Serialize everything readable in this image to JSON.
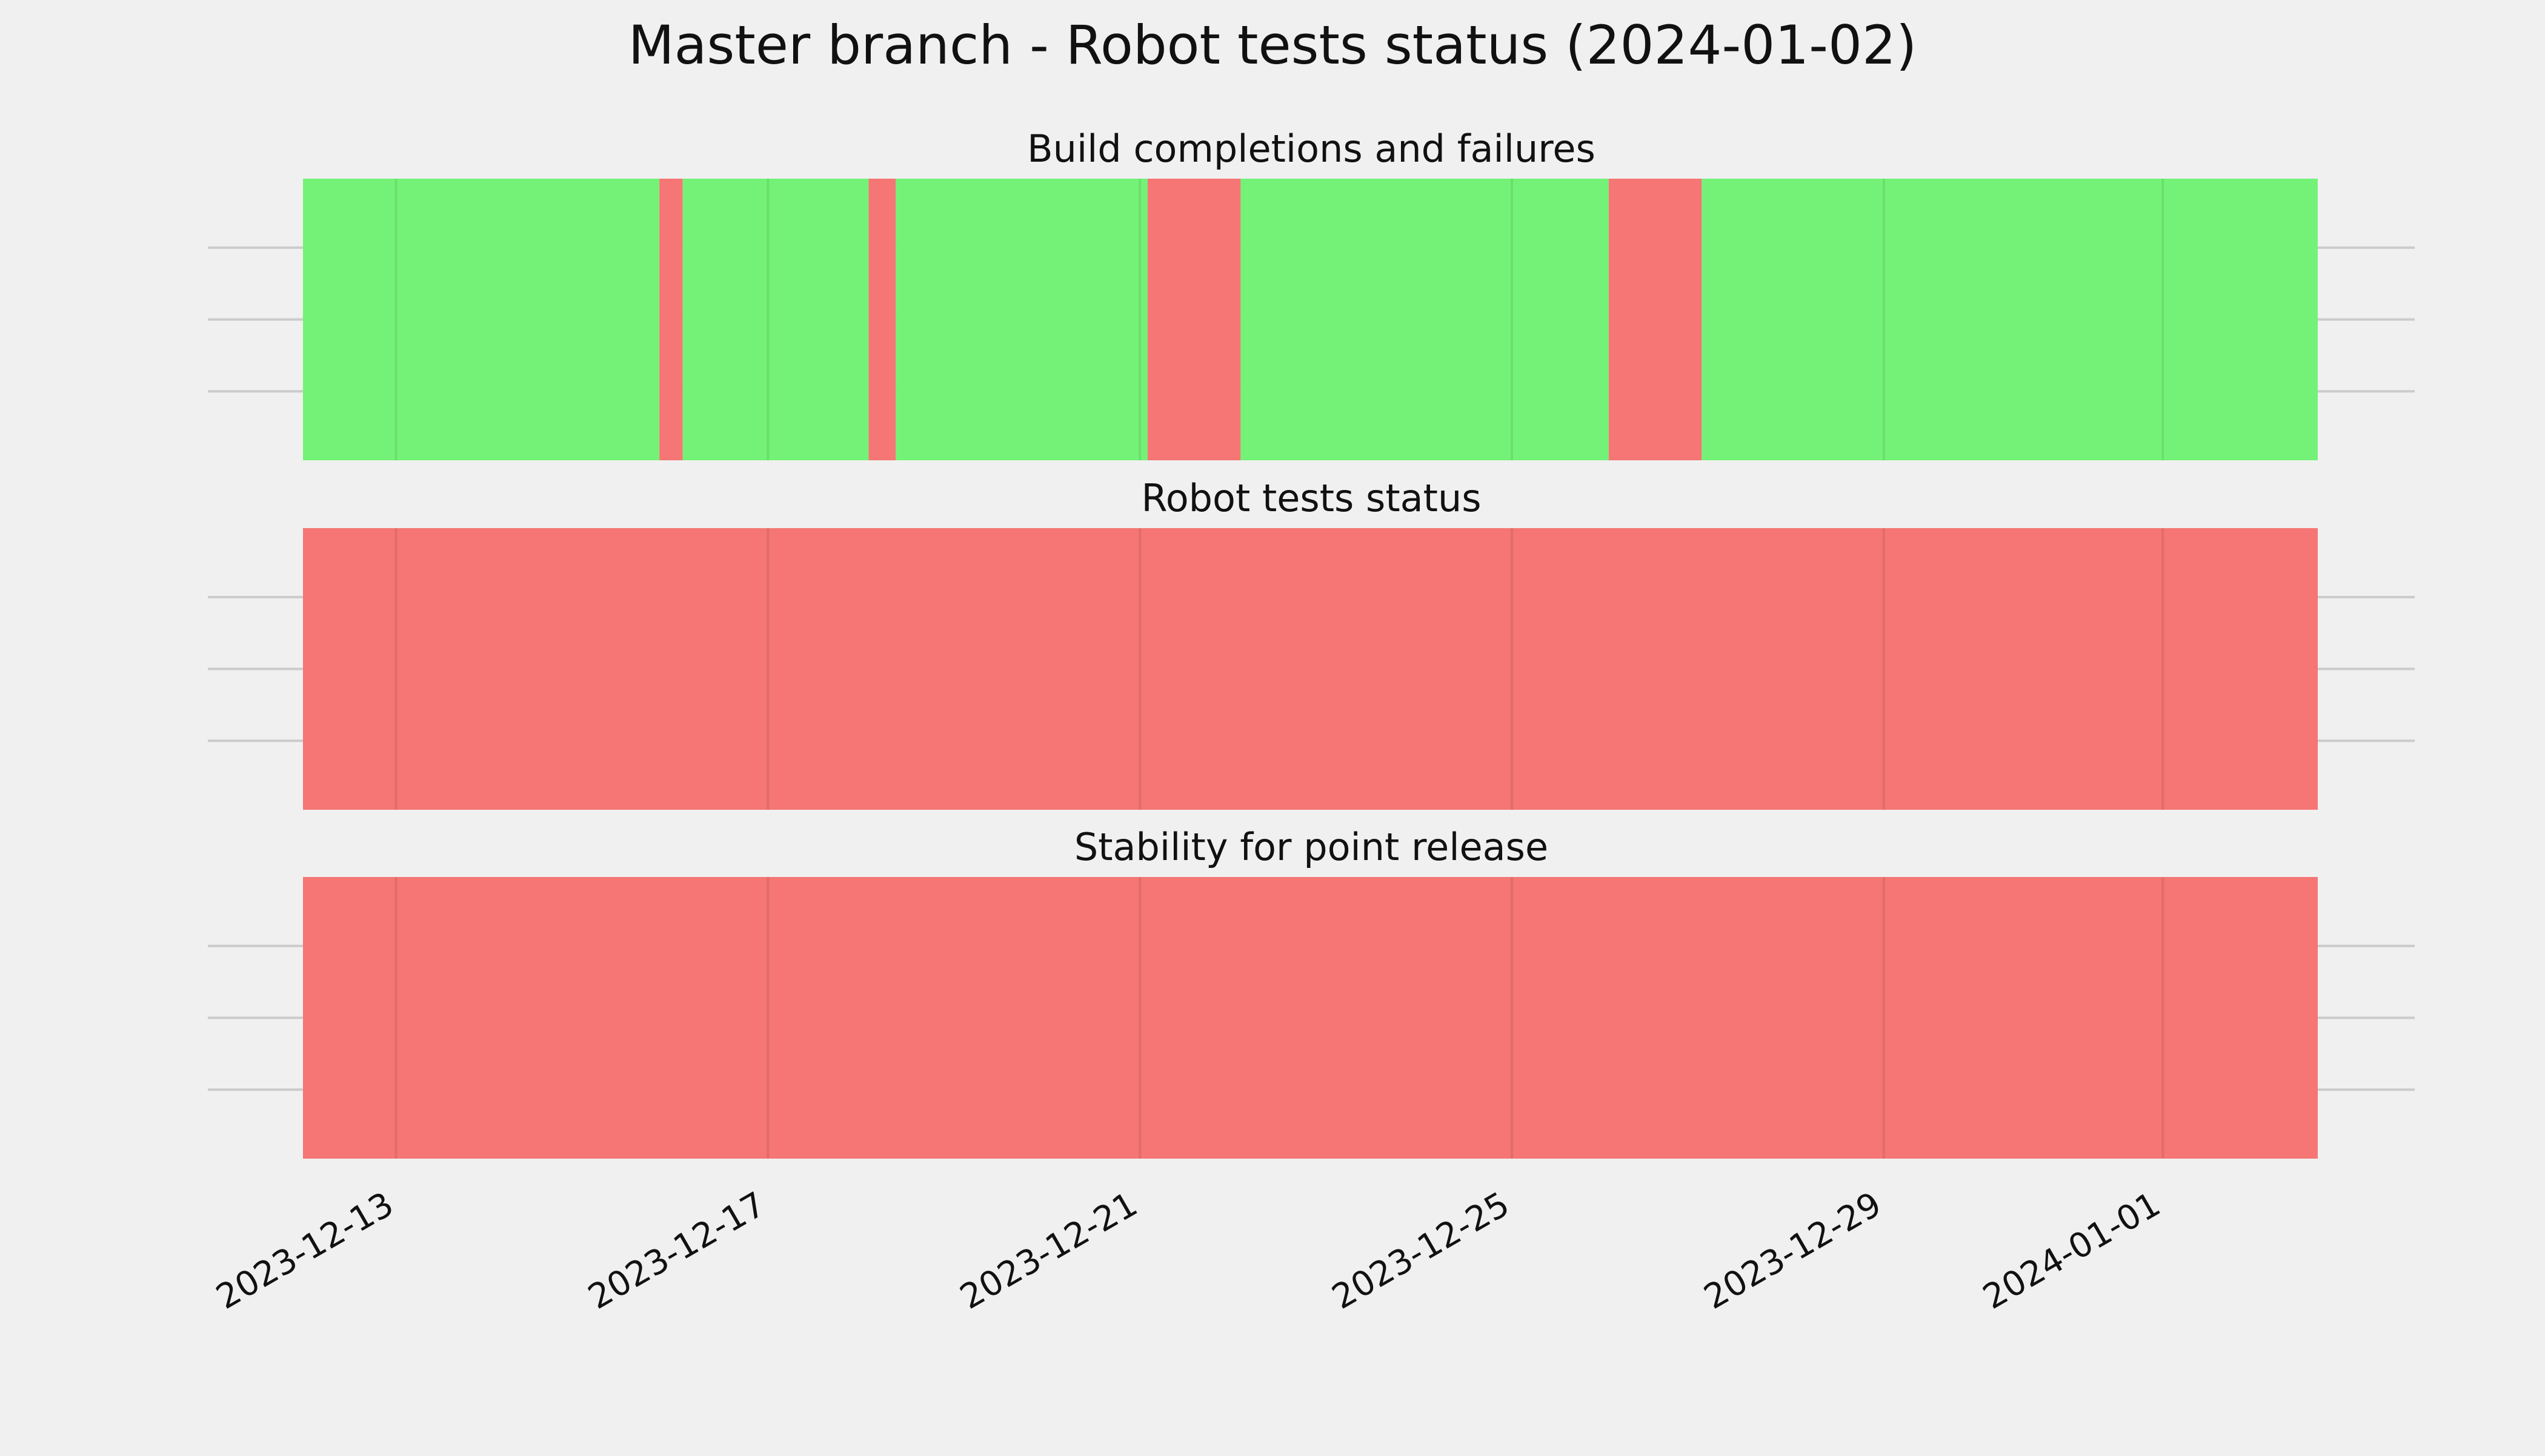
{
  "chart_data": {
    "type": "timeline",
    "title": "Master branch - Robot tests status (2024-01-02)",
    "x_axis": {
      "type": "date",
      "range": [
        "2023-12-12T00:00",
        "2024-01-02T16:00"
      ],
      "ticks": [
        "2023-12-13",
        "2023-12-17",
        "2023-12-21",
        "2023-12-25",
        "2023-12-29",
        "2024-01-01"
      ],
      "tick_label_rotation": 30,
      "grid": true
    },
    "y_axis": {
      "tick_labels_visible": false,
      "grid": true
    },
    "status_colors": {
      "pass": "#74f277",
      "fail": "#f57674"
    },
    "panels": [
      {
        "title": "Build completions and failures",
        "segments": [
          {
            "start": "2023-12-12T00:00",
            "end": "2023-12-15T20:00",
            "status": "pass"
          },
          {
            "start": "2023-12-15T20:00",
            "end": "2023-12-16T02:00",
            "status": "fail"
          },
          {
            "start": "2023-12-16T02:00",
            "end": "2023-12-18T02:00",
            "status": "pass"
          },
          {
            "start": "2023-12-18T02:00",
            "end": "2023-12-18T09:00",
            "status": "fail"
          },
          {
            "start": "2023-12-18T09:00",
            "end": "2023-12-21T02:00",
            "status": "pass"
          },
          {
            "start": "2023-12-21T02:00",
            "end": "2023-12-22T02:00",
            "status": "fail"
          },
          {
            "start": "2023-12-22T02:00",
            "end": "2023-12-26T01:00",
            "status": "pass"
          },
          {
            "start": "2023-12-26T01:00",
            "end": "2023-12-27T01:00",
            "status": "fail"
          },
          {
            "start": "2023-12-27T01:00",
            "end": "2024-01-02T16:00",
            "status": "pass"
          }
        ]
      },
      {
        "title": "Robot tests status",
        "segments": [
          {
            "start": "2023-12-12T00:00",
            "end": "2024-01-02T16:00",
            "status": "fail"
          }
        ]
      },
      {
        "title": "Stability for point release",
        "segments": [
          {
            "start": "2023-12-12T00:00",
            "end": "2024-01-02T16:00",
            "status": "fail"
          }
        ]
      }
    ]
  }
}
